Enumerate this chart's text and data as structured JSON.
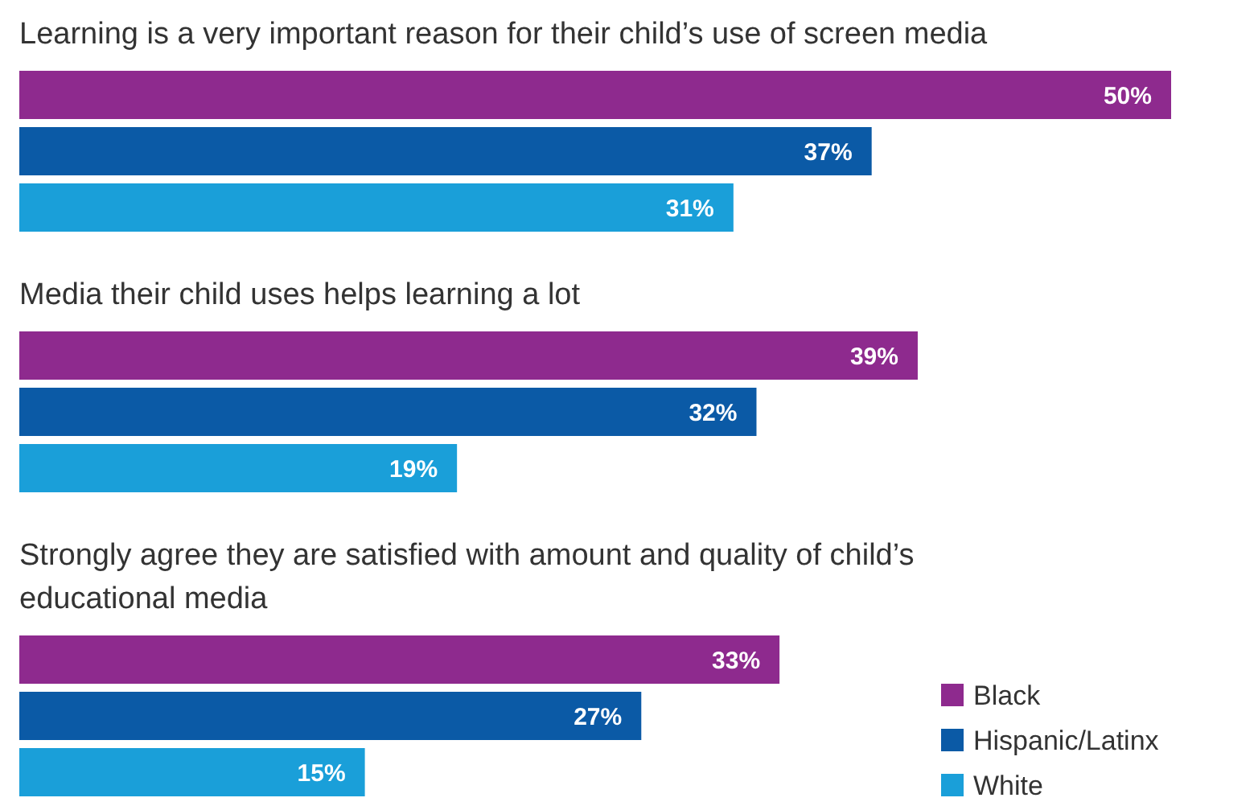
{
  "chart_data": {
    "type": "bar",
    "orientation": "horizontal",
    "categories": [
      "Learning is a very important reason for their child’s use of screen media",
      "Media their child uses helps learning a lot",
      "Strongly agree they are satisfied with amount and quality of child’s educational media"
    ],
    "series": [
      {
        "name": "Black",
        "color": "#8e2a8e",
        "values": [
          50,
          39,
          33
        ],
        "value_labels": [
          "50%",
          "39%",
          "33%"
        ]
      },
      {
        "name": "Hispanic/Latinx",
        "color": "#0b5aa6",
        "values": [
          37,
          32,
          27
        ],
        "value_labels": [
          "37%",
          "32%",
          "27%"
        ]
      },
      {
        "name": "White",
        "color": "#1a9fd9",
        "values": [
          31,
          19,
          15
        ],
        "value_labels": [
          "31%",
          "19%",
          "15%"
        ]
      }
    ],
    "legend": "bottom right"
  }
}
